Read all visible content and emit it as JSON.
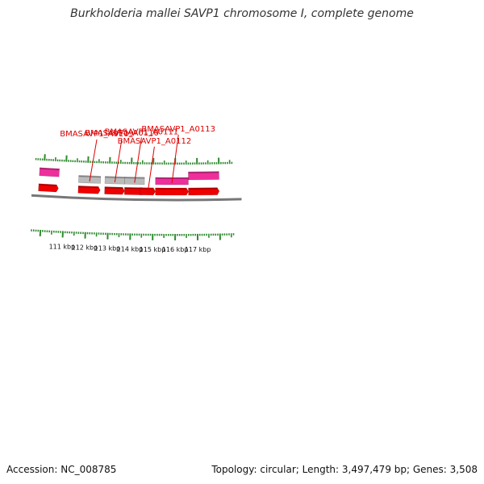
{
  "title": "Burkholderia mallei SAVP1 chromosome I, complete genome",
  "footer": {
    "accession": "Accession: NC_008785",
    "summary": "Topology: circular; Length: 3,497,479 bp; Genes: 3,508"
  },
  "colors": {
    "backbone": "#777777",
    "tick": "#2f8a2f",
    "label": "#dd0000",
    "pink": "#ee2f9b",
    "red": "#ee0000",
    "gray": "#bbbbbb"
  },
  "axis": {
    "unit": "kbp",
    "tick_labels": [
      111,
      112,
      113,
      114,
      115,
      116,
      117
    ]
  },
  "genes": [
    {
      "label": "BMASAVP1_A0109",
      "start": 111.6,
      "end": 112.6,
      "strand": "forward",
      "color": "gray"
    },
    {
      "label": "BMASAVP1_A0110",
      "start": 112.8,
      "end": 113.7,
      "strand": "forward",
      "color": "gray"
    },
    {
      "label": "BMASAVP1_A0111",
      "start": 113.7,
      "end": 114.6,
      "strand": "forward",
      "color": "gray"
    },
    {
      "label": "BMASAVP1_A0112",
      "start": 114.4,
      "end": 115.1,
      "strand": "forward",
      "color": "red"
    },
    {
      "label": "BMASAVP1_A0113",
      "start": 115.1,
      "end": 116.6,
      "strand": "forward",
      "color": "pink"
    }
  ],
  "features": [
    {
      "start": 109.8,
      "end": 110.7,
      "track": "outer",
      "color": "pink",
      "arrow": false
    },
    {
      "start": 116.6,
      "end": 118.0,
      "track": "outer",
      "color": "pink",
      "arrow": false
    },
    {
      "start": 109.8,
      "end": 110.7,
      "track": "inner",
      "color": "red",
      "arrow": true
    },
    {
      "start": 111.6,
      "end": 112.6,
      "track": "inner",
      "color": "red",
      "arrow": true
    },
    {
      "start": 112.8,
      "end": 113.7,
      "track": "inner",
      "color": "red",
      "arrow": true
    },
    {
      "start": 113.7,
      "end": 114.6,
      "track": "inner",
      "color": "red",
      "arrow": true
    },
    {
      "start": 115.1,
      "end": 116.6,
      "track": "inner",
      "color": "red",
      "arrow": true
    },
    {
      "start": 116.6,
      "end": 118.0,
      "track": "inner",
      "color": "red",
      "arrow": true
    }
  ]
}
